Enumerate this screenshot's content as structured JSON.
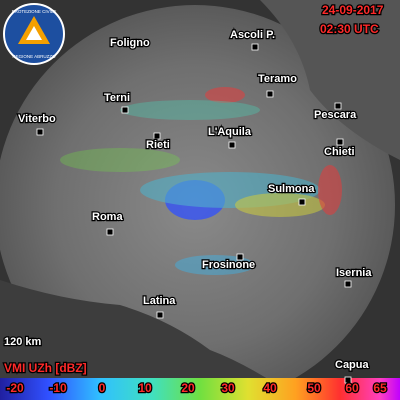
{
  "logo": {
    "top": "PROTEZIONE CIVILE",
    "bottom": "REGIONE ABRUZZO"
  },
  "header": {
    "date": "24-09-2017",
    "time": "02:30 UTC"
  },
  "cities": [
    "Foligno",
    "Ascoli P.",
    "Teramo",
    "Pescara",
    "Terni",
    "Viterbo",
    "Rieti",
    "L'Aquila",
    "Chieti",
    "Sulmona",
    "Roma",
    "Frosinone",
    "Isernia",
    "Latina",
    "Capua"
  ],
  "range_label": "120 km",
  "legend": {
    "title": "VMI UZh [dBZ]",
    "ticks": [
      -20,
      -10,
      0,
      10,
      20,
      30,
      40,
      50,
      60,
      65
    ]
  }
}
